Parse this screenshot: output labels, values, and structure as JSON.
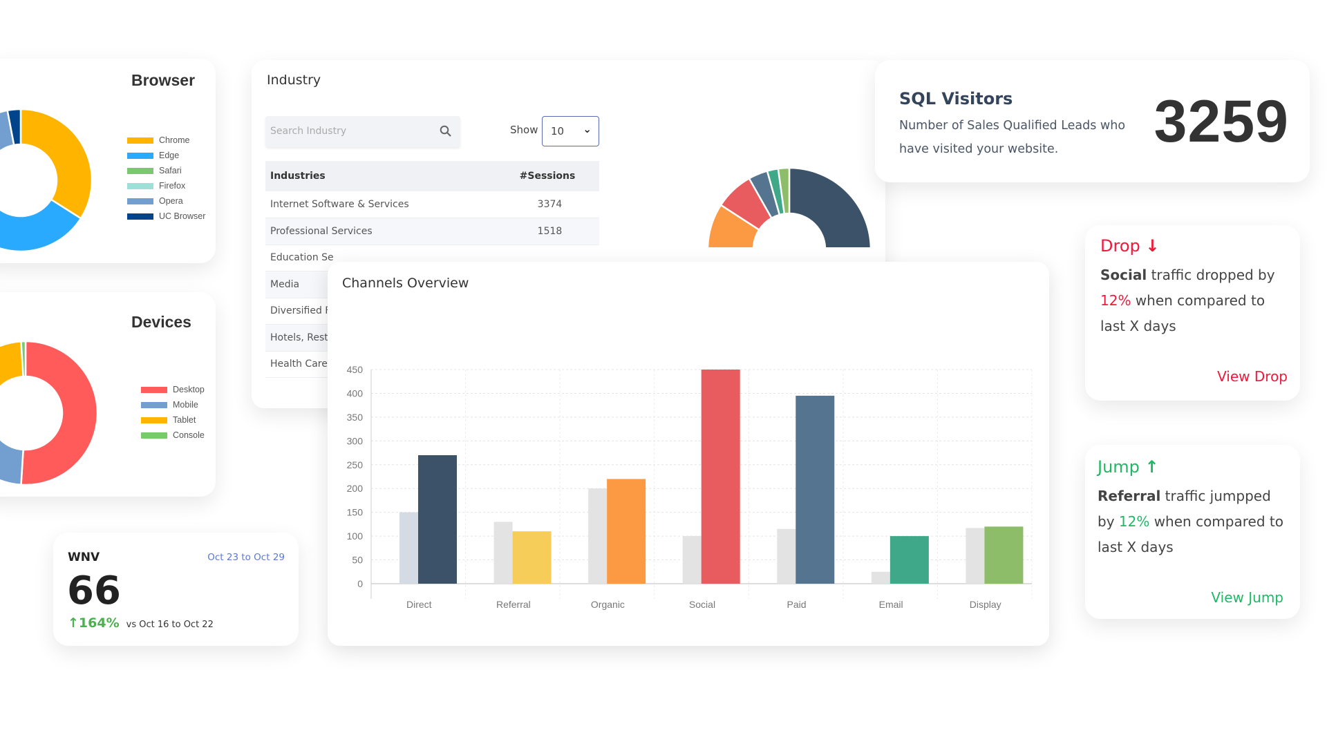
{
  "browser": {
    "title": "Browser",
    "chart_data": {
      "type": "pie",
      "variant": "donut",
      "categories": [
        "Chrome",
        "Edge",
        "Safari",
        "Firefox",
        "Opera",
        "UC Browser"
      ],
      "values": [
        34,
        28,
        15,
        12,
        8,
        3
      ],
      "colors": [
        "#ffb400",
        "#2aaaff",
        "#7bc96f",
        "#9ee0d8",
        "#739fd0",
        "#00458c"
      ],
      "legend": "right"
    }
  },
  "devices": {
    "title": "Devices",
    "chart_data": {
      "type": "pie",
      "variant": "donut",
      "categories": [
        "Desktop",
        "Mobile",
        "Tablet",
        "Console"
      ],
      "values": [
        51,
        21,
        27,
        1
      ],
      "colors": [
        "#ff5b5b",
        "#739fd0",
        "#ffb400",
        "#7bc96f"
      ],
      "legend": "right"
    }
  },
  "wnv": {
    "title": "WNV",
    "date_range": "Oct 23 to Oct 29",
    "value": "66",
    "change": "164%",
    "change_direction": "up",
    "compare_text": "vs Oct 16 to Oct 22"
  },
  "industry": {
    "title": "Industry",
    "search_placeholder": "Search Industry",
    "show_label": "Show",
    "show_value": "10",
    "columns": [
      "Industries",
      "#Sessions"
    ],
    "rows": [
      {
        "name": "Internet Software & Services",
        "sessions": "3374"
      },
      {
        "name": "Professional Services",
        "sessions": "1518"
      },
      {
        "name": "Education Se",
        "sessions": ""
      },
      {
        "name": "Media",
        "sessions": ""
      },
      {
        "name": "Diversified Fi",
        "sessions": ""
      },
      {
        "name": "Hotels, Resta",
        "sessions": ""
      },
      {
        "name": "Health Care I",
        "sessions": ""
      }
    ]
  },
  "channel_share": {
    "chart_data": {
      "type": "pie",
      "variant": "donut",
      "values": [
        45,
        20,
        12,
        7,
        3.5,
        2,
        2
      ],
      "colors": [
        "#3b5268",
        "#f7cd5a",
        "#fc9a44",
        "#e85c5f",
        "#55748f",
        "#3fa888",
        "#8ebd6a"
      ]
    }
  },
  "sql": {
    "title": "SQL Visitors",
    "description": "Number of Sales Qualified Leads who have visited your website.",
    "value": "3259"
  },
  "channels": {
    "title": "Channels Overview",
    "chart_data": {
      "type": "bar",
      "categories": [
        "Direct",
        "Referral",
        "Organic",
        "Social",
        "Paid",
        "Email",
        "Display"
      ],
      "series": [
        {
          "values": [
            150,
            130,
            200,
            100,
            115,
            25,
            117
          ],
          "color": "#e3e3e3"
        },
        {
          "values": [
            270,
            110,
            220,
            450,
            395,
            100,
            120
          ],
          "colors": [
            "#3b5268",
            "#f7cd5a",
            "#fc9a44",
            "#e85c5f",
            "#55748f",
            "#3fa888",
            "#8ebd6a"
          ]
        }
      ],
      "yticks": [
        0,
        50,
        100,
        150,
        200,
        250,
        300,
        350,
        400,
        450
      ],
      "ylim": [
        0,
        450
      ],
      "grid": true
    }
  },
  "drop": {
    "title": "Drop",
    "channel": "Social",
    "text1": " traffic dropped by ",
    "percent": "12%",
    "text2": " when compared to last X days",
    "link": "View Drop",
    "color": "#f0193c"
  },
  "jump": {
    "title": "Jump",
    "channel": "Referral",
    "text1": " traffic jumpped by ",
    "percent": "12%",
    "text2": " when compared to last X days",
    "link": "View Jump",
    "color": "#1fb865"
  }
}
